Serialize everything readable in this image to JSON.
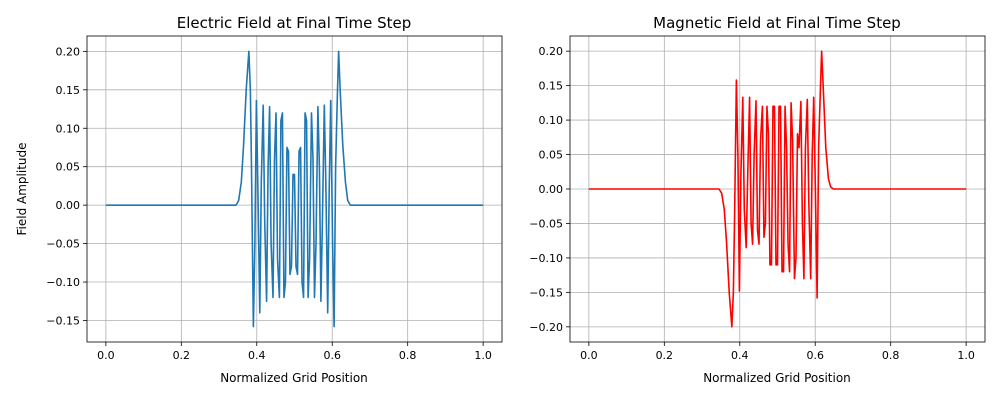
{
  "chart_data": [
    {
      "type": "line",
      "title": "Electric Field at Final Time Step",
      "xlabel": "Normalized Grid Position",
      "ylabel": "Field Amplitude",
      "xlim": [
        -0.05,
        1.05
      ],
      "ylim": [
        -0.178,
        0.22
      ],
      "xticks": [
        0.0,
        0.2,
        0.4,
        0.6,
        0.8,
        1.0
      ],
      "xtick_labels": [
        "0.0",
        "0.2",
        "0.4",
        "0.6",
        "0.8",
        "1.0"
      ],
      "yticks": [
        -0.15,
        -0.1,
        -0.05,
        0.0,
        0.05,
        0.1,
        0.15,
        0.2
      ],
      "ytick_labels": [
        "−0.15",
        "−0.10",
        "−0.05",
        "0.00",
        "0.05",
        "0.10",
        "0.15",
        "0.20"
      ],
      "grid": true,
      "series": [
        {
          "color": "#1f77b4",
          "x": [
            0.0,
            0.345,
            0.352,
            0.359,
            0.365,
            0.372,
            0.379,
            0.383,
            0.386,
            0.391,
            0.395,
            0.399,
            0.403,
            0.408,
            0.412,
            0.417,
            0.421,
            0.426,
            0.43,
            0.434,
            0.438,
            0.443,
            0.447,
            0.451,
            0.455,
            0.46,
            0.464,
            0.468,
            0.472,
            0.476,
            0.48,
            0.484,
            0.488,
            0.492,
            0.496,
            0.5,
            0.504,
            0.508,
            0.512,
            0.516,
            0.52,
            0.524,
            0.528,
            0.532,
            0.536,
            0.54,
            0.545,
            0.549,
            0.553,
            0.557,
            0.562,
            0.566,
            0.57,
            0.574,
            0.579,
            0.583,
            0.588,
            0.592,
            0.596,
            0.601,
            0.605,
            0.609,
            0.614,
            0.617,
            0.621,
            0.628,
            0.635,
            0.641,
            0.648,
            0.655,
            1.0
          ],
          "y": [
            0.0,
            0.0,
            0.006,
            0.03,
            0.078,
            0.15,
            0.2,
            0.15,
            0.05,
            -0.158,
            -0.05,
            0.136,
            0.02,
            -0.14,
            0.03,
            0.13,
            -0.02,
            -0.125,
            0.05,
            0.128,
            -0.05,
            -0.12,
            0.06,
            0.12,
            -0.07,
            -0.12,
            0.11,
            0.12,
            -0.12,
            -0.1,
            0.075,
            0.07,
            -0.09,
            -0.08,
            0.04,
            0.04,
            -0.08,
            -0.09,
            0.07,
            0.075,
            -0.1,
            -0.12,
            0.12,
            0.11,
            -0.12,
            -0.07,
            0.12,
            0.06,
            -0.12,
            -0.05,
            0.128,
            0.05,
            -0.125,
            -0.02,
            0.13,
            0.03,
            -0.14,
            0.02,
            0.136,
            -0.05,
            -0.158,
            0.05,
            0.15,
            0.2,
            0.15,
            0.078,
            0.03,
            0.006,
            0.0,
            0.0,
            0.0
          ]
        }
      ]
    },
    {
      "type": "line",
      "title": "Magnetic Field at Final Time Step",
      "xlabel": "Normalized Grid Position",
      "ylabel": "",
      "xlim": [
        -0.05,
        1.05
      ],
      "ylim": [
        -0.222,
        0.222
      ],
      "xticks": [
        0.0,
        0.2,
        0.4,
        0.6,
        0.8,
        1.0
      ],
      "xtick_labels": [
        "0.0",
        "0.2",
        "0.4",
        "0.6",
        "0.8",
        "1.0"
      ],
      "yticks": [
        -0.2,
        -0.15,
        -0.1,
        -0.05,
        0.0,
        0.05,
        0.1,
        0.15,
        0.2
      ],
      "ytick_labels": [
        "−0.20",
        "−0.15",
        "−0.10",
        "−0.05",
        "0.00",
        "0.05",
        "0.10",
        "0.15",
        "0.20"
      ],
      "grid": true,
      "series": [
        {
          "color": "#ff0000",
          "x": [
            0.0,
            0.345,
            0.352,
            0.359,
            0.365,
            0.372,
            0.379,
            0.383,
            0.386,
            0.391,
            0.395,
            0.399,
            0.403,
            0.408,
            0.412,
            0.417,
            0.421,
            0.426,
            0.43,
            0.434,
            0.438,
            0.443,
            0.447,
            0.451,
            0.455,
            0.46,
            0.464,
            0.468,
            0.472,
            0.476,
            0.48,
            0.484,
            0.488,
            0.492,
            0.496,
            0.5,
            0.504,
            0.508,
            0.512,
            0.516,
            0.52,
            0.524,
            0.528,
            0.532,
            0.536,
            0.54,
            0.545,
            0.549,
            0.553,
            0.557,
            0.562,
            0.566,
            0.57,
            0.574,
            0.579,
            0.583,
            0.588,
            0.592,
            0.596,
            0.601,
            0.605,
            0.609,
            0.614,
            0.617,
            0.621,
            0.628,
            0.635,
            0.641,
            0.648,
            0.655,
            1.0
          ],
          "y": [
            0.0,
            0.0,
            -0.006,
            -0.03,
            -0.078,
            -0.15,
            -0.2,
            -0.15,
            -0.05,
            0.158,
            0.05,
            -0.148,
            0.02,
            0.133,
            -0.03,
            -0.085,
            0.02,
            0.133,
            -0.05,
            -0.08,
            0.05,
            0.128,
            -0.06,
            -0.08,
            0.07,
            0.12,
            -0.07,
            -0.05,
            0.12,
            0.08,
            -0.11,
            -0.11,
            0.12,
            0.12,
            -0.11,
            -0.11,
            0.12,
            0.12,
            -0.12,
            -0.12,
            0.12,
            0.06,
            -0.08,
            -0.12,
            0.125,
            0.07,
            -0.13,
            -0.1,
            0.08,
            0.06,
            0.127,
            -0.05,
            -0.13,
            0.06,
            0.13,
            -0.02,
            -0.13,
            0.05,
            0.133,
            -0.02,
            -0.158,
            0.06,
            0.15,
            0.2,
            0.15,
            0.06,
            0.015,
            0.003,
            0.0,
            0.0,
            0.0
          ]
        }
      ]
    }
  ]
}
